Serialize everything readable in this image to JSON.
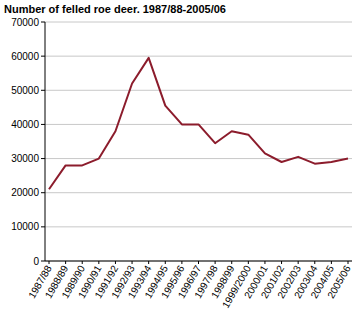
{
  "chart_data": {
    "type": "line",
    "title": "Number of felled roe deer. 1987/88-2005/06",
    "categories": [
      "1987/88",
      "1988/89",
      "1989/90",
      "1990/91",
      "1991/92",
      "1992/93",
      "1993/94",
      "1994/95",
      "1995/96",
      "1996/97",
      "1997/98",
      "1998/99",
      "1999/2000",
      "2000/01",
      "2001/02",
      "2002/03",
      "2003/04",
      "2004/05",
      "2005/06"
    ],
    "values": [
      21000,
      28000,
      28000,
      30000,
      38000,
      52000,
      59500,
      45500,
      40000,
      40000,
      34500,
      38000,
      37000,
      31500,
      29000,
      30500,
      28500,
      29000,
      30000
    ],
    "color": "#8c1c2c",
    "ylim": [
      0,
      70000
    ],
    "yticks": [
      0,
      10000,
      20000,
      30000,
      40000,
      50000,
      60000,
      70000
    ],
    "grid": true
  }
}
